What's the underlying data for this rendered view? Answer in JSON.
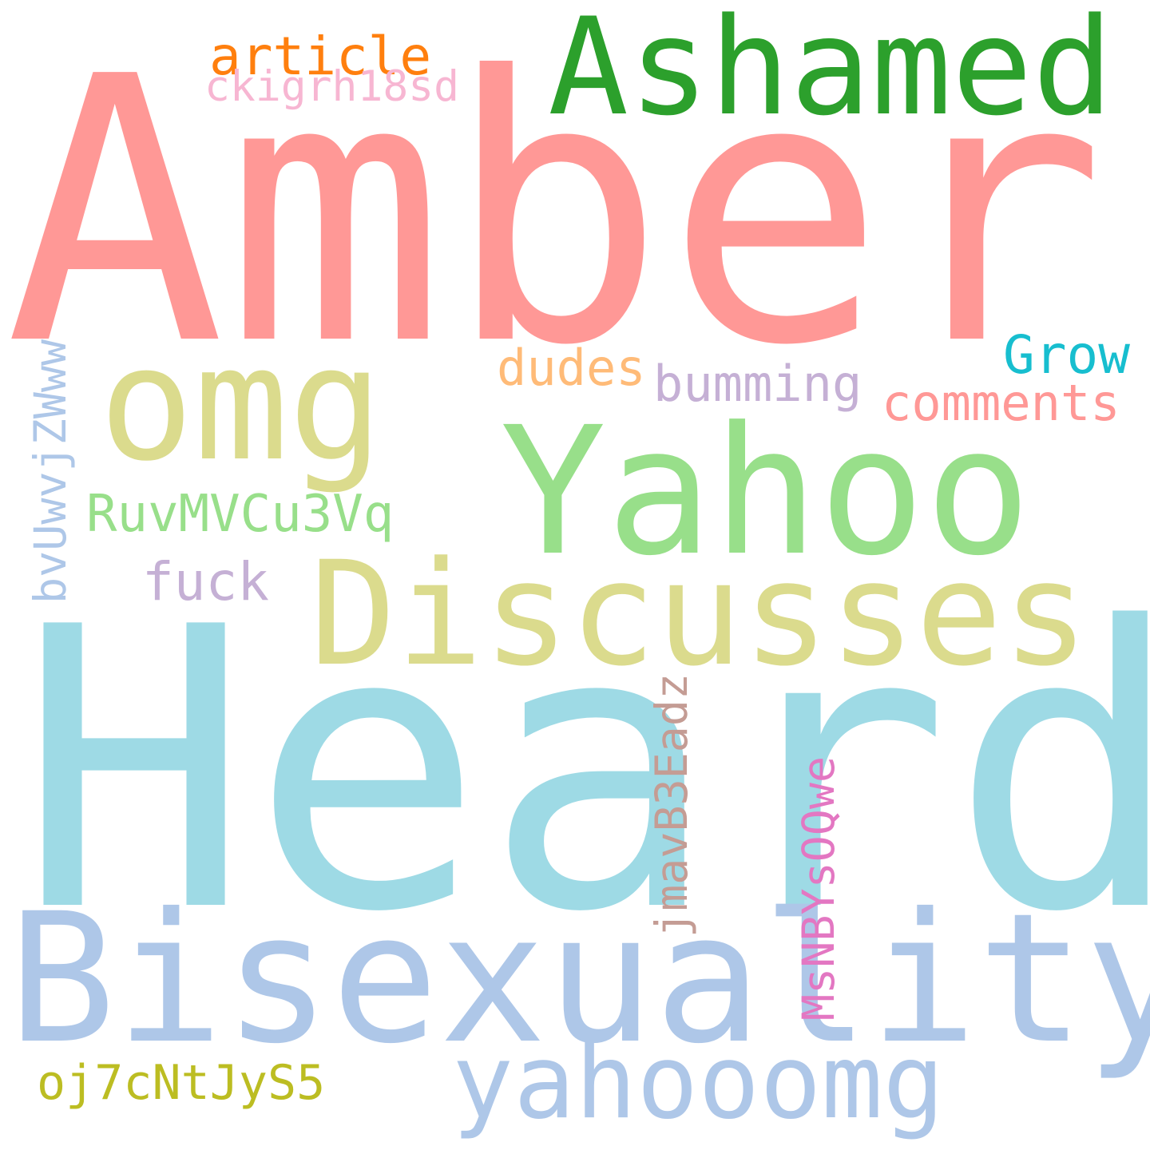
{
  "cloud": {
    "background": "#ffffff",
    "words": [
      {
        "text": "Amber",
        "color": "#ff9896",
        "orientation": "horizontal"
      },
      {
        "text": "Heard",
        "color": "#9edae5",
        "orientation": "horizontal"
      },
      {
        "text": "Bisexuality",
        "color": "#aec7e8",
        "orientation": "horizontal"
      },
      {
        "text": "Yahoo",
        "color": "#98df8a",
        "orientation": "horizontal"
      },
      {
        "text": "Discusses",
        "color": "#dbdb8d",
        "orientation": "horizontal"
      },
      {
        "text": "Ashamed",
        "color": "#2ca02c",
        "orientation": "horizontal"
      },
      {
        "text": "omg",
        "color": "#dbdb8d",
        "orientation": "horizontal"
      },
      {
        "text": "yahooomg",
        "color": "#aec7e8",
        "orientation": "horizontal"
      },
      {
        "text": "article",
        "color": "#ff7f0e",
        "orientation": "horizontal"
      },
      {
        "text": "ckigrh18sd",
        "color": "#f7b6d2",
        "orientation": "horizontal"
      },
      {
        "text": "Grow",
        "color": "#17becf",
        "orientation": "horizontal"
      },
      {
        "text": "dudes",
        "color": "#ffbb78",
        "orientation": "horizontal"
      },
      {
        "text": "bumming",
        "color": "#c5b0d5",
        "orientation": "horizontal"
      },
      {
        "text": "comments",
        "color": "#ff9896",
        "orientation": "horizontal"
      },
      {
        "text": "RuvMVCu3Vq",
        "color": "#98df8a",
        "orientation": "horizontal"
      },
      {
        "text": "fuck",
        "color": "#c5b0d5",
        "orientation": "horizontal"
      },
      {
        "text": "bvUwvjZWww",
        "color": "#aec7e8",
        "orientation": "vertical"
      },
      {
        "text": "jmavB3Eadz",
        "color": "#c49c94",
        "orientation": "vertical"
      },
      {
        "text": "MsNBYsOQwe",
        "color": "#e377c2",
        "orientation": "vertical"
      },
      {
        "text": "oj7cNtJyS5",
        "color": "#bcbd22",
        "orientation": "horizontal"
      }
    ]
  }
}
